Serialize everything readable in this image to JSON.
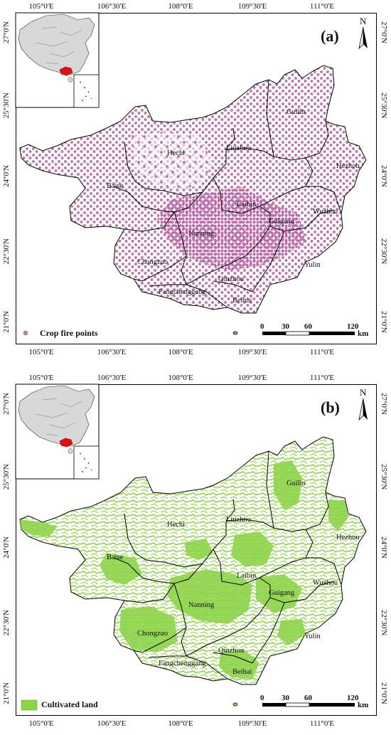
{
  "lon_ticks": [
    "105°0'E",
    "106°30'E",
    "108°0'E",
    "109°30'E",
    "111°0'E"
  ],
  "lat_ticks": [
    "27°0'N",
    "25°30'N",
    "24°0'N",
    "22°30'N",
    "21°0'N"
  ],
  "north_label": "N",
  "scale": {
    "labels": [
      "0",
      "30",
      "60",
      "120"
    ],
    "unit": "km"
  },
  "regions": [
    "Hechi",
    "Liuzhou",
    "Guilin",
    "Hezhou",
    "Baise",
    "Laibin",
    "Wuzhou",
    "Guigang",
    "Nanning",
    "Chongzuo",
    "Yulin",
    "Qinzhou",
    "Fangchenggang",
    "Beihai"
  ],
  "panels": [
    {
      "letter": "(a)",
      "legend_label": "Crop fire points",
      "legend_color": "#cc77bb"
    },
    {
      "letter": "(b)",
      "legend_label": "Cultivated land",
      "legend_color": "#8ed44a"
    }
  ],
  "colors": {
    "inset_highlight": "#e01010",
    "inset_land": "#d8d8d8",
    "boundary": "#000000"
  }
}
